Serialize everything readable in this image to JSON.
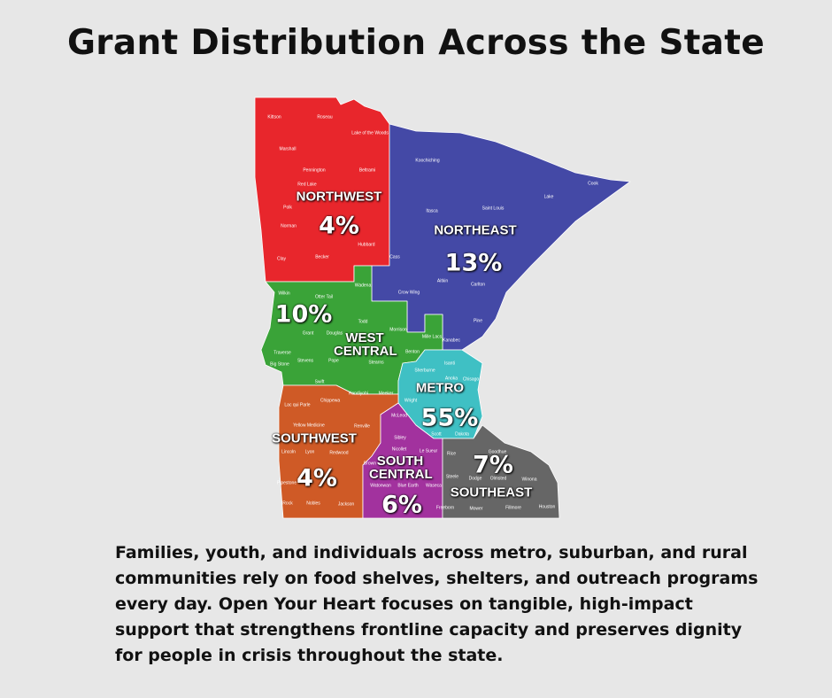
{
  "title": "Grant Distribution Across the State",
  "regions": [
    {
      "name": "NORTHWEST",
      "percent": "4%",
      "color": "#e8262c",
      "counties": [
        "Kittson",
        "Roseau",
        "Lake of the Woods",
        "Marshall",
        "Pennington",
        "Red Lake",
        "Polk",
        "Beltrami",
        "Norman",
        "Hubbard",
        "Clay",
        "Becker"
      ]
    },
    {
      "name": "NORTHEAST",
      "percent": "13%",
      "color": "#4449a6",
      "counties": [
        "Koochiching",
        "Itasca",
        "Saint Louis",
        "Lake",
        "Cook",
        "Cass",
        "Aitkin",
        "Carlton",
        "Crow Wing",
        "Pine",
        "Kanabec"
      ]
    },
    {
      "name": "WEST CENTRAL",
      "percent": "10%",
      "color": "#3aa338",
      "counties": [
        "Wilkin",
        "Otter Tail",
        "Wadena",
        "Grant",
        "Douglas",
        "Todd",
        "Morrison",
        "Traverse",
        "Big Stone",
        "Stevens",
        "Pope",
        "Stearns",
        "Benton",
        "Mille Lacs",
        "Swift",
        "Kandiyohi",
        "Meeker"
      ]
    },
    {
      "name": "METRO",
      "percent": "55%",
      "color": "#3fc0c4",
      "counties": [
        "Sherburne",
        "Isanti",
        "Anoka",
        "Chisago",
        "Wright",
        "Scott",
        "Dakota"
      ]
    },
    {
      "name": "SOUTHWEST",
      "percent": "4%",
      "color": "#cf5a26",
      "counties": [
        "Lac qui Parle",
        "Chippewa",
        "Yellow Medicine",
        "Renville",
        "Lincoln",
        "Lyon",
        "Redwood",
        "Pipestone",
        "Rock",
        "Nobles",
        "Jackson"
      ]
    },
    {
      "name": "SOUTH CENTRAL",
      "percent": "6%",
      "color": "#a2329e",
      "counties": [
        "McLeod",
        "Sibley",
        "Nicollet",
        "Le Sueur",
        "Brown",
        "Waseca",
        "Blue Earth",
        "Watonwan"
      ]
    },
    {
      "name": "SOUTHEAST",
      "percent": "7%",
      "color": "#666666",
      "counties": [
        "Rice",
        "Goodhue",
        "Steele",
        "Dodge",
        "Olmsted",
        "Winona",
        "Freeborn",
        "Mower",
        "Fillmore",
        "Houston"
      ]
    }
  ],
  "body": "Families, youth, and individuals across metro, suburban, and rural communities rely on food shelves, shelters, and outreach programs every day. Open Your Heart focuses on tangible, high-impact support that strengthens frontline capacity and preserves dignity for people in crisis throughout the state."
}
